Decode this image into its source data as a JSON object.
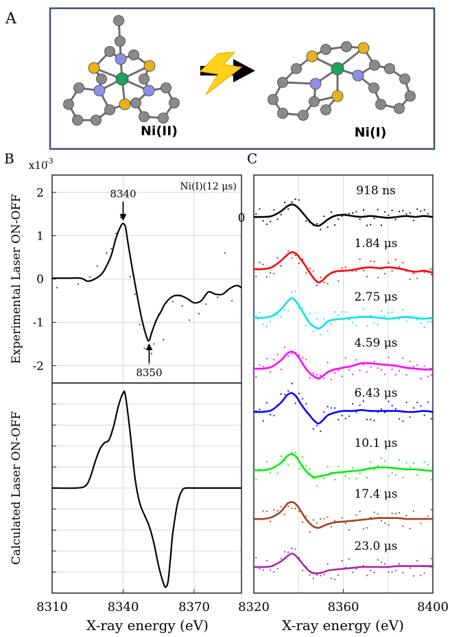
{
  "panels": {
    "a": "A",
    "b": "B",
    "c": "C"
  },
  "scheme": {
    "left_label": "Ni(II)",
    "right_label": "Ni(I)",
    "box_color": "#3b4f6b",
    "atom_colors": {
      "carbon": "#8a8a8a",
      "sulfur": "#e8b21a",
      "nitrogen": "#8f8fe6",
      "nickel": "#1fa35a"
    },
    "arrow_icon": "lightning-bolt-icon"
  },
  "chart_data": [
    {
      "id": "B-top",
      "type": "line",
      "title": "",
      "inset_label": "Ni(I)(12 μs)",
      "ylabel": "Experimental Laser ON-OFF",
      "y_exponent": "x10",
      "y_exponent_power": "-3",
      "xlim": [
        8310,
        8390
      ],
      "ylim": [
        -2.4,
        2.4
      ],
      "y_ticks": [
        2,
        1,
        0,
        -1,
        -2
      ],
      "y_tick_labels": [
        "2",
        "1",
        "0",
        "-1",
        "-2"
      ],
      "x_ticks": [
        8310,
        8340,
        8370
      ],
      "grid": true,
      "annotations": [
        {
          "label": "8340",
          "x": 8340,
          "y": 1.28,
          "direction": "down"
        },
        {
          "label": "8350",
          "x": 8351,
          "y": -1.42,
          "direction": "up"
        }
      ],
      "series": [
        {
          "color": "#000000",
          "x": [
            8310,
            8316,
            8322,
            8325,
            8328,
            8331,
            8333,
            8335,
            8337,
            8339,
            8340,
            8341,
            8342,
            8344,
            8346,
            8348,
            8350,
            8351,
            8352,
            8354,
            8356,
            8358,
            8361,
            8364,
            8367,
            8370,
            8373,
            8376,
            8379,
            8382,
            8385,
            8388,
            8390
          ],
          "y": [
            0.02,
            0.02,
            0.02,
            -0.05,
            0.0,
            0.12,
            0.3,
            0.55,
            0.95,
            1.22,
            1.28,
            1.2,
            0.85,
            0.2,
            -0.4,
            -0.95,
            -1.35,
            -1.42,
            -1.25,
            -0.95,
            -0.75,
            -0.55,
            -0.4,
            -0.38,
            -0.45,
            -0.55,
            -0.5,
            -0.3,
            -0.35,
            -0.35,
            -0.22,
            -0.15,
            -0.2
          ]
        }
      ],
      "scatter": {
        "color": "#555555",
        "x": [
          8312,
          8321,
          8326,
          8329,
          8333,
          8335,
          8337,
          8339,
          8343,
          8345,
          8347,
          8349,
          8351,
          8352,
          8353,
          8355,
          8357,
          8361,
          8365,
          8368,
          8372,
          8375,
          8380,
          8383,
          8386
        ],
        "y": [
          -0.2,
          -0.12,
          0.05,
          0.3,
          0.6,
          0.7,
          1.05,
          1.42,
          0.05,
          -0.35,
          -1.05,
          -1.6,
          -1.95,
          -1.72,
          -1.5,
          -0.82,
          -1.4,
          -0.52,
          -0.62,
          -0.95,
          -0.8,
          -0.58,
          -0.42,
          0.6,
          -0.5
        ]
      }
    },
    {
      "id": "B-bottom",
      "type": "line",
      "title": "",
      "ylabel": "Calculated Laser ON-OFF",
      "xlabel": "X-ray energy (eV)",
      "xlim": [
        8310,
        8390
      ],
      "ylim": [
        -1.05,
        1.05
      ],
      "x_ticks": [
        8310,
        8340,
        8370
      ],
      "x_tick_labels": [
        "8310",
        "8340",
        "8370"
      ],
      "grid": true,
      "series": [
        {
          "color": "#000000",
          "x": [
            8310,
            8320,
            8324,
            8326,
            8328,
            8330,
            8332,
            8334,
            8336,
            8338,
            8340,
            8341,
            8343,
            8345,
            8347,
            8349,
            8351,
            8353,
            8355,
            8357,
            8358,
            8359,
            8360,
            8361,
            8363,
            8365,
            8367,
            8370,
            8380,
            8390
          ],
          "y": [
            0.0,
            0.0,
            0.02,
            0.1,
            0.25,
            0.38,
            0.45,
            0.48,
            0.62,
            0.82,
            0.95,
            0.92,
            0.55,
            0.1,
            -0.15,
            -0.27,
            -0.38,
            -0.55,
            -0.78,
            -0.95,
            -0.99,
            -0.93,
            -0.7,
            -0.45,
            -0.15,
            -0.02,
            0.0,
            0.0,
            0.0,
            0.0
          ]
        }
      ]
    },
    {
      "id": "C",
      "type": "line",
      "title": "",
      "xlabel": "X-ray energy (eV)",
      "xlim": [
        8320,
        8400
      ],
      "x_ticks": [
        8320,
        8360,
        8400
      ],
      "x_tick_labels": [
        "8320",
        "8360",
        "8400"
      ],
      "zero_label": "0",
      "grid": true,
      "x": [
        8320,
        8324,
        8328,
        8332,
        8335,
        8337,
        8339,
        8341,
        8343,
        8345,
        8347,
        8349,
        8351,
        8353,
        8356,
        8360,
        8364,
        8368,
        8372,
        8376,
        8380,
        8384,
        8388,
        8392,
        8396,
        8400
      ],
      "series": [
        {
          "name": "918 ns",
          "color": "#000000",
          "y": [
            0,
            0,
            0.05,
            0.3,
            0.6,
            0.7,
            0.6,
            0.35,
            0.05,
            -0.25,
            -0.45,
            -0.5,
            -0.35,
            -0.15,
            0.05,
            0.12,
            0.05,
            0,
            0.05,
            0,
            -0.05,
            0,
            0.05,
            0,
            0.05,
            0
          ]
        },
        {
          "name": "1.84 μs",
          "color": "#ff0000",
          "y": [
            0,
            0,
            0.1,
            0.45,
            0.8,
            0.95,
            0.85,
            0.55,
            0.2,
            -0.2,
            -0.55,
            -0.75,
            -0.6,
            -0.35,
            -0.15,
            -0.1,
            -0.05,
            0.05,
            0.1,
            0.05,
            0.1,
            0.05,
            -0.05,
            -0.15,
            -0.1,
            -0.2
          ]
        },
        {
          "name": "2.75 μs",
          "color": "#00e5ee",
          "y": [
            0,
            0,
            0.1,
            0.45,
            0.9,
            1.1,
            0.9,
            0.5,
            0.1,
            -0.3,
            -0.5,
            -0.6,
            -0.45,
            -0.2,
            -0.1,
            -0.05,
            0,
            0.05,
            0.05,
            0,
            -0.05,
            0,
            0.05,
            0,
            -0.05,
            0
          ]
        },
        {
          "name": "4.59 μs",
          "color": "#ff00ff",
          "y": [
            0,
            0,
            0.1,
            0.45,
            0.85,
            0.95,
            0.8,
            0.45,
            0.05,
            -0.25,
            -0.45,
            -0.55,
            -0.4,
            -0.2,
            -0.05,
            0.05,
            0.15,
            0.3,
            0.3,
            0.25,
            0.2,
            0.15,
            0.05,
            0,
            -0.05,
            -0.05
          ]
        },
        {
          "name": "6.43 μs",
          "color": "#0000ff",
          "y": [
            0,
            0,
            0.1,
            0.5,
            0.95,
            1.05,
            0.85,
            0.45,
            0.1,
            -0.2,
            -0.5,
            -0.65,
            -0.45,
            -0.2,
            -0.05,
            0.05,
            0.05,
            0.1,
            0.05,
            0.05,
            0.05,
            0.05,
            0,
            0,
            0.05,
            0
          ]
        },
        {
          "name": "10.1 μs",
          "color": "#00ee00",
          "y": [
            0,
            0,
            0.1,
            0.4,
            0.8,
            0.9,
            0.75,
            0.35,
            0.0,
            -0.25,
            -0.4,
            -0.35,
            -0.3,
            -0.25,
            -0.15,
            -0.1,
            -0.05,
            0.0,
            0.1,
            0.15,
            0.15,
            0.1,
            0.05,
            0.05,
            0,
            -0.05
          ]
        },
        {
          "name": "17.4 μs",
          "color": "#a0421e",
          "y": [
            0,
            0,
            0.1,
            0.4,
            0.85,
            0.95,
            0.8,
            0.45,
            0.05,
            -0.25,
            -0.45,
            -0.5,
            -0.4,
            -0.3,
            -0.2,
            -0.15,
            -0.1,
            -0.05,
            0,
            0.05,
            0.05,
            0.05,
            0,
            0,
            0,
            0
          ]
        },
        {
          "name": "23.0 μs",
          "color": "#aa22aa",
          "y": [
            0,
            0,
            0.05,
            0.3,
            0.6,
            0.75,
            0.6,
            0.3,
            0.0,
            -0.25,
            -0.35,
            -0.35,
            -0.3,
            -0.2,
            -0.15,
            -0.1,
            -0.05,
            0,
            0,
            0,
            0,
            0.05,
            0.05,
            0.05,
            0.05,
            0.05
          ]
        }
      ]
    }
  ]
}
